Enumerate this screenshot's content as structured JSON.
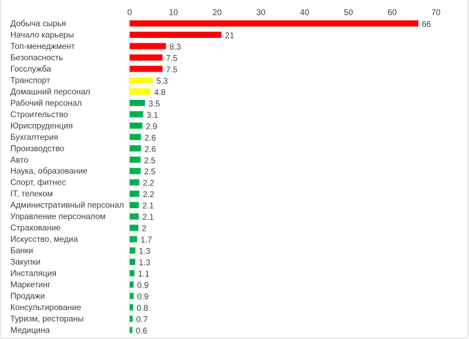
{
  "chart_data": {
    "type": "bar",
    "orientation": "horizontal",
    "title": "",
    "xlabel": "",
    "ylabel": "",
    "xlim": [
      0,
      70
    ],
    "x_ticks": [
      0,
      10,
      20,
      30,
      40,
      50,
      60,
      70
    ],
    "x_axis_position": "top",
    "grid": false,
    "categories": [
      "Добыча сырья",
      "Начало карьеры",
      "Топ-менеджмент",
      "Безопасность",
      "Госслужба",
      "Транспорт",
      "Домашний персонал",
      "Рабочий персонал",
      "Строительство",
      "Юриспруденция",
      "Бухгалтерия",
      "Производство",
      "Авто",
      "Наука, образование",
      "Спорт, фитнес",
      "IT, телеком",
      "Административный персонал",
      "Управление персоналом",
      "Страхование",
      "Искусство, медиа",
      "Банки",
      "Закупки",
      "Инсталяция",
      "Маркетинг",
      "Продажи",
      "Консультирование",
      "Туризм, рестораны",
      "Медицина"
    ],
    "values": [
      66,
      21,
      8.3,
      7.5,
      7.5,
      5.3,
      4.8,
      3.5,
      3.1,
      2.9,
      2.6,
      2.6,
      2.5,
      2.5,
      2.2,
      2.2,
      2.1,
      2.1,
      2,
      1.7,
      1.3,
      1.3,
      1.1,
      0.9,
      0.9,
      0.8,
      0.7,
      0.6
    ],
    "value_labels": [
      "66",
      "21",
      "8.3",
      "7.5",
      "7.5",
      "5.3",
      "4.8",
      "3.5",
      "3.1",
      "2.9",
      "2.6",
      "2.6",
      "2.5",
      "2.5",
      "2.2",
      "2.2",
      "2.1",
      "2.1",
      "2",
      "1.7",
      "1.3",
      "1.3",
      "1.1",
      "0.9",
      "0.9",
      "0.8",
      "0.7",
      "0.6"
    ],
    "bar_colors": [
      "#ff0000",
      "#ff0000",
      "#ff0000",
      "#ff0000",
      "#ff0000",
      "#ffff00",
      "#ffff00",
      "#00b050",
      "#00b050",
      "#00b050",
      "#00b050",
      "#00b050",
      "#00b050",
      "#00b050",
      "#00b050",
      "#00b050",
      "#00b050",
      "#00b050",
      "#00b050",
      "#00b050",
      "#00b050",
      "#00b050",
      "#00b050",
      "#00b050",
      "#00b050",
      "#00b050",
      "#00b050",
      "#00b050"
    ]
  }
}
